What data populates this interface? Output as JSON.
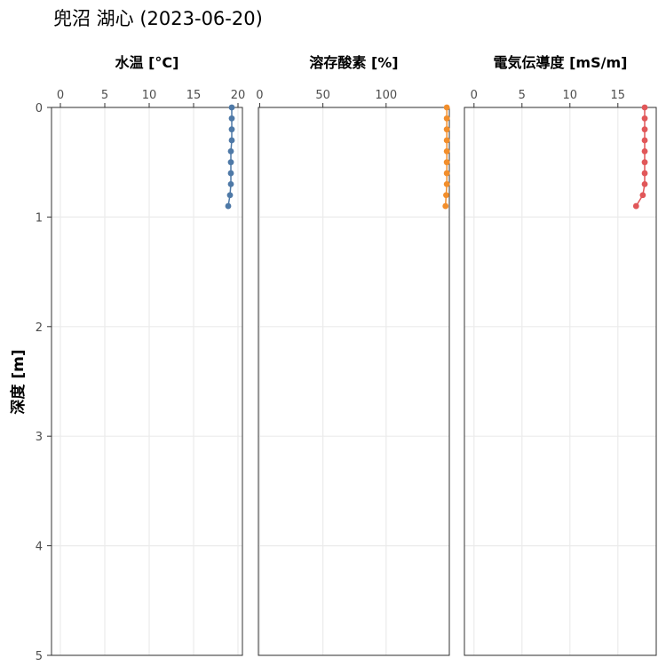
{
  "title": "兜沼 湖心 (2023-06-20)",
  "ylabel": "深度 [m]",
  "yaxis": {
    "ylim": [
      0,
      5
    ],
    "ticks": [
      0,
      1,
      2,
      3,
      4,
      5
    ],
    "tick_labels": [
      "0",
      "1",
      "2",
      "3",
      "4",
      "5"
    ],
    "reversed": true
  },
  "chart_data": [
    {
      "type": "scatter",
      "title": "水温 [°C]",
      "color": "#4e79a7",
      "xlim": [
        -1,
        20.5
      ],
      "xticks": [
        0,
        5,
        10,
        15,
        20
      ],
      "xtick_labels": [
        "0",
        "5",
        "10",
        "15",
        "20"
      ],
      "grid": true,
      "xaxis_position": "top",
      "points": [
        {
          "depth": 0.0,
          "value": 19.3
        },
        {
          "depth": 0.1,
          "value": 19.3
        },
        {
          "depth": 0.2,
          "value": 19.3
        },
        {
          "depth": 0.3,
          "value": 19.3
        },
        {
          "depth": 0.4,
          "value": 19.2
        },
        {
          "depth": 0.5,
          "value": 19.2
        },
        {
          "depth": 0.6,
          "value": 19.2
        },
        {
          "depth": 0.7,
          "value": 19.2
        },
        {
          "depth": 0.8,
          "value": 19.1
        },
        {
          "depth": 0.9,
          "value": 18.9
        }
      ]
    },
    {
      "type": "scatter",
      "title": "溶存酸素 [%]",
      "color": "#f28e2b",
      "xlim": [
        -1,
        150
      ],
      "xticks": [
        0,
        50,
        100
      ],
      "xtick_labels": [
        "0",
        "50",
        "100"
      ],
      "grid": true,
      "xaxis_position": "top",
      "points": [
        {
          "depth": 0.0,
          "value": 148
        },
        {
          "depth": 0.1,
          "value": 148
        },
        {
          "depth": 0.2,
          "value": 148
        },
        {
          "depth": 0.3,
          "value": 148
        },
        {
          "depth": 0.4,
          "value": 148
        },
        {
          "depth": 0.5,
          "value": 148
        },
        {
          "depth": 0.6,
          "value": 148
        },
        {
          "depth": 0.7,
          "value": 148
        },
        {
          "depth": 0.8,
          "value": 147.5
        },
        {
          "depth": 0.9,
          "value": 147
        }
      ]
    },
    {
      "type": "scatter",
      "title": "電気伝導度 [mS/m]",
      "color": "#e15759",
      "xlim": [
        -1,
        19
      ],
      "xticks": [
        0,
        5,
        10,
        15
      ],
      "xtick_labels": [
        "0",
        "5",
        "10",
        "15"
      ],
      "grid": true,
      "xaxis_position": "top",
      "points": [
        {
          "depth": 0.0,
          "value": 17.8
        },
        {
          "depth": 0.1,
          "value": 17.8
        },
        {
          "depth": 0.2,
          "value": 17.8
        },
        {
          "depth": 0.3,
          "value": 17.8
        },
        {
          "depth": 0.4,
          "value": 17.8
        },
        {
          "depth": 0.5,
          "value": 17.8
        },
        {
          "depth": 0.6,
          "value": 17.8
        },
        {
          "depth": 0.7,
          "value": 17.8
        },
        {
          "depth": 0.8,
          "value": 17.6
        },
        {
          "depth": 0.9,
          "value": 16.9
        }
      ]
    }
  ]
}
